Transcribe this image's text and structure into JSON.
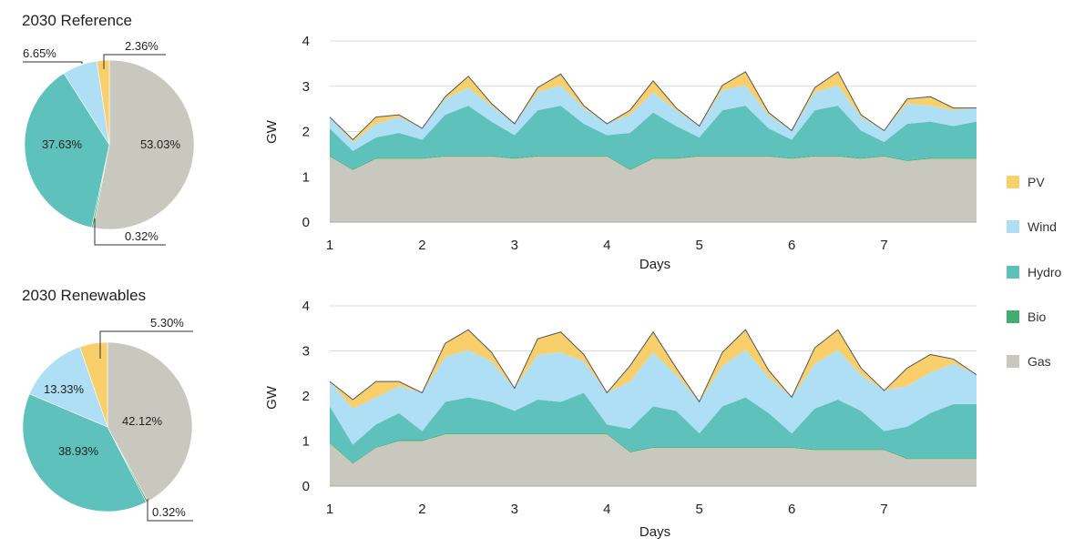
{
  "colors": {
    "PV": "#f9cf6b",
    "Wind": "#aedff4",
    "Hydro": "#5fc1bc",
    "Bio": "#3fae6e",
    "Gas": "#c9c8bf"
  },
  "legend": [
    "PV",
    "Wind",
    "Hydro",
    "Bio",
    "Gas"
  ],
  "chart_data": [
    {
      "type": "pie",
      "title": "2030 Reference",
      "slices": [
        {
          "name": "Gas",
          "value": 53.03,
          "label": "53.03%"
        },
        {
          "name": "Bio",
          "value": 0.32,
          "label": "0.32%"
        },
        {
          "name": "Hydro",
          "value": 37.63,
          "label": "37.63%"
        },
        {
          "name": "Wind",
          "value": 6.65,
          "label": "6.65%"
        },
        {
          "name": "PV",
          "value": 2.36,
          "label": "2.36%"
        }
      ]
    },
    {
      "type": "pie",
      "title": "2030 Renewables",
      "slices": [
        {
          "name": "Gas",
          "value": 42.12,
          "label": "42.12%"
        },
        {
          "name": "Bio",
          "value": 0.32,
          "label": "0.32%"
        },
        {
          "name": "Hydro",
          "value": 38.93,
          "label": "38.93%"
        },
        {
          "name": "Wind",
          "value": 13.33,
          "label": "13.33%"
        },
        {
          "name": "PV",
          "value": 5.3,
          "label": "5.30%"
        }
      ]
    },
    {
      "type": "area",
      "stacked": true,
      "xlabel": "Days",
      "ylabel": "GW",
      "xlim": [
        1,
        8
      ],
      "ylim": [
        0,
        4
      ],
      "xticks": [
        "1",
        "2",
        "3",
        "4",
        "5",
        "6",
        "7"
      ],
      "yticks": [
        "0",
        "1",
        "2",
        "3",
        "4"
      ],
      "x": [
        1.0,
        1.25,
        1.5,
        1.75,
        2.0,
        2.25,
        2.5,
        2.75,
        3.0,
        3.25,
        3.5,
        3.75,
        4.0,
        4.25,
        4.5,
        4.75,
        5.0,
        5.25,
        5.5,
        5.75,
        6.0,
        6.25,
        6.5,
        6.75,
        7.0,
        7.25,
        7.5,
        7.75,
        8.0
      ],
      "series": [
        {
          "name": "Gas",
          "values": [
            1.45,
            1.15,
            1.4,
            1.4,
            1.4,
            1.45,
            1.45,
            1.45,
            1.4,
            1.45,
            1.45,
            1.45,
            1.45,
            1.15,
            1.4,
            1.4,
            1.45,
            1.45,
            1.45,
            1.45,
            1.4,
            1.45,
            1.45,
            1.4,
            1.45,
            1.35,
            1.4,
            1.4,
            1.4
          ]
        },
        {
          "name": "Bio",
          "values": [
            0.02,
            0.02,
            0.02,
            0.02,
            0.02,
            0.02,
            0.02,
            0.02,
            0.02,
            0.02,
            0.02,
            0.02,
            0.02,
            0.02,
            0.02,
            0.02,
            0.02,
            0.02,
            0.02,
            0.02,
            0.02,
            0.02,
            0.02,
            0.02,
            0.02,
            0.02,
            0.02,
            0.02,
            0.02
          ]
        },
        {
          "name": "Hydro",
          "values": [
            0.6,
            0.4,
            0.45,
            0.55,
            0.4,
            0.9,
            1.1,
            0.75,
            0.5,
            1.0,
            1.1,
            0.7,
            0.45,
            0.8,
            1.0,
            0.7,
            0.4,
            1.0,
            1.1,
            0.6,
            0.4,
            1.0,
            1.1,
            0.6,
            0.3,
            0.8,
            0.8,
            0.7,
            0.8
          ]
        },
        {
          "name": "Wind",
          "values": [
            0.25,
            0.2,
            0.3,
            0.35,
            0.25,
            0.35,
            0.4,
            0.35,
            0.25,
            0.4,
            0.45,
            0.35,
            0.25,
            0.4,
            0.45,
            0.35,
            0.25,
            0.45,
            0.45,
            0.3,
            0.2,
            0.4,
            0.45,
            0.3,
            0.25,
            0.45,
            0.35,
            0.35,
            0.3
          ]
        },
        {
          "name": "PV",
          "values": [
            0,
            0.05,
            0.15,
            0.05,
            0,
            0.05,
            0.25,
            0.05,
            0,
            0.1,
            0.25,
            0.05,
            0,
            0.1,
            0.25,
            0.05,
            0,
            0.1,
            0.3,
            0.05,
            0,
            0.1,
            0.3,
            0.05,
            0,
            0.1,
            0.2,
            0.05,
            0
          ]
        }
      ]
    },
    {
      "type": "area",
      "stacked": true,
      "xlabel": "Days",
      "ylabel": "GW",
      "xlim": [
        1,
        8
      ],
      "ylim": [
        0,
        4
      ],
      "xticks": [
        "1",
        "2",
        "3",
        "4",
        "5",
        "6",
        "7"
      ],
      "yticks": [
        "0",
        "1",
        "2",
        "3",
        "4"
      ],
      "x": [
        1.0,
        1.25,
        1.5,
        1.75,
        2.0,
        2.25,
        2.5,
        2.75,
        3.0,
        3.25,
        3.5,
        3.75,
        4.0,
        4.25,
        4.5,
        4.75,
        5.0,
        5.25,
        5.5,
        5.75,
        6.0,
        6.25,
        6.5,
        6.75,
        7.0,
        7.25,
        7.5,
        7.75,
        8.0
      ],
      "series": [
        {
          "name": "Gas",
          "values": [
            0.95,
            0.5,
            0.85,
            1.0,
            1.0,
            1.15,
            1.15,
            1.15,
            1.15,
            1.15,
            1.15,
            1.15,
            1.15,
            0.75,
            0.85,
            0.85,
            0.85,
            0.85,
            0.85,
            0.85,
            0.85,
            0.8,
            0.8,
            0.8,
            0.8,
            0.6,
            0.6,
            0.6,
            0.6
          ]
        },
        {
          "name": "Bio",
          "values": [
            0.02,
            0.02,
            0.02,
            0.02,
            0.02,
            0.02,
            0.02,
            0.02,
            0.02,
            0.02,
            0.02,
            0.02,
            0.02,
            0.02,
            0.02,
            0.02,
            0.02,
            0.02,
            0.02,
            0.02,
            0.02,
            0.02,
            0.02,
            0.02,
            0.02,
            0.02,
            0.02,
            0.02,
            0.02
          ]
        },
        {
          "name": "Hydro",
          "values": [
            0.8,
            0.4,
            0.5,
            0.6,
            0.2,
            0.7,
            0.8,
            0.7,
            0.5,
            0.75,
            0.7,
            0.9,
            0.2,
            0.5,
            0.9,
            0.8,
            0.3,
            0.9,
            1.1,
            0.75,
            0.3,
            0.9,
            1.1,
            0.85,
            0.4,
            0.7,
            1.0,
            1.2,
            1.2
          ]
        },
        {
          "name": "Wind",
          "values": [
            0.55,
            0.8,
            0.6,
            0.6,
            0.85,
            1.0,
            1.05,
            0.9,
            0.5,
            1.0,
            1.1,
            0.7,
            0.7,
            1.05,
            1.2,
            0.8,
            0.7,
            0.9,
            1.05,
            0.8,
            0.8,
            1.0,
            1.1,
            0.8,
            0.9,
            0.9,
            0.9,
            0.9,
            0.65
          ]
        },
        {
          "name": "PV",
          "values": [
            0,
            0.2,
            0.35,
            0.1,
            0,
            0.3,
            0.45,
            0.2,
            0,
            0.35,
            0.45,
            0.15,
            0,
            0.35,
            0.45,
            0.15,
            0,
            0.3,
            0.45,
            0.15,
            0,
            0.35,
            0.45,
            0.15,
            0,
            0.4,
            0.4,
            0.1,
            0
          ]
        }
      ]
    }
  ]
}
